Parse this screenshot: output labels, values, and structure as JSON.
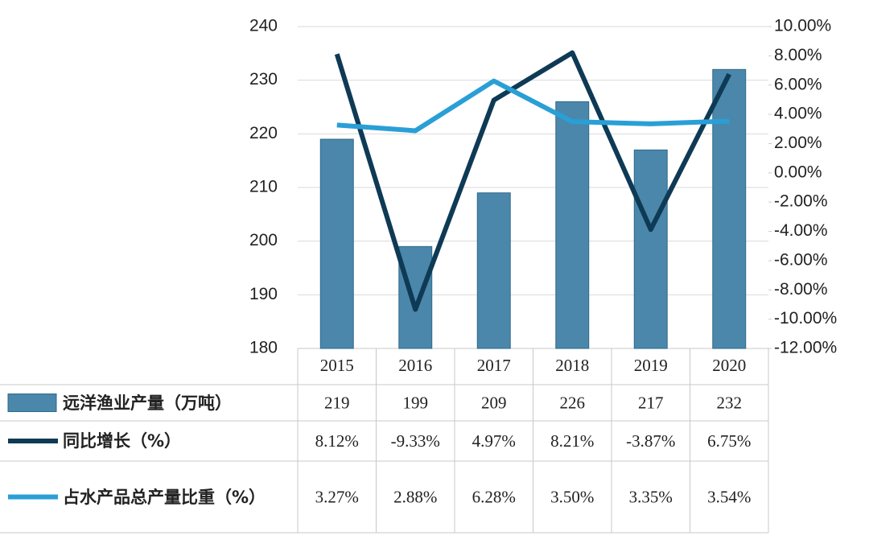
{
  "chart_data": {
    "type": "bar-line",
    "categories": [
      "2015",
      "2016",
      "2017",
      "2018",
      "2019",
      "2020"
    ],
    "series": [
      {
        "name": "远洋渔业产量（万吨）",
        "type": "bar",
        "color": "#4a87ab",
        "values": [
          219,
          199,
          209,
          226,
          217,
          232
        ]
      },
      {
        "name": "同比增长（%）",
        "type": "line",
        "axis": "y2",
        "color": "#0e3a55",
        "values": [
          8.12,
          -9.33,
          4.97,
          8.21,
          -3.87,
          6.75
        ],
        "value_labels": [
          "8.12%",
          "-9.33%",
          "4.97%",
          "8.21%",
          "-3.87%",
          "6.75%"
        ]
      },
      {
        "name": "占水产品总产量比重（%）",
        "type": "line",
        "axis": "y2",
        "color": "#2a9fd6",
        "values": [
          3.27,
          2.88,
          6.28,
          3.5,
          3.35,
          3.54
        ],
        "value_labels": [
          "3.27%",
          "2.88%",
          "6.28%",
          "3.50%",
          "3.35%",
          "3.54%"
        ]
      }
    ],
    "ylim": [
      180,
      240
    ],
    "yticks": [
      180,
      190,
      200,
      210,
      220,
      230,
      240
    ],
    "y2lim": [
      -12,
      10
    ],
    "y2ticks": [
      {
        "value": -12,
        "label": "-12.00%"
      },
      {
        "value": -10,
        "label": "-10.00%"
      },
      {
        "value": -8,
        "label": "-8.00%"
      },
      {
        "value": -6,
        "label": "-6.00%"
      },
      {
        "value": -4,
        "label": "-4.00%"
      },
      {
        "value": -2,
        "label": "-2.00%"
      },
      {
        "value": 0,
        "label": "0.00%"
      },
      {
        "value": 2,
        "label": "2.00%"
      },
      {
        "value": 4,
        "label": "4.00%"
      },
      {
        "value": 6,
        "label": "6.00%"
      },
      {
        "value": 8,
        "label": "8.00%"
      },
      {
        "value": 10,
        "label": "10.00%"
      }
    ],
    "grid": true
  }
}
